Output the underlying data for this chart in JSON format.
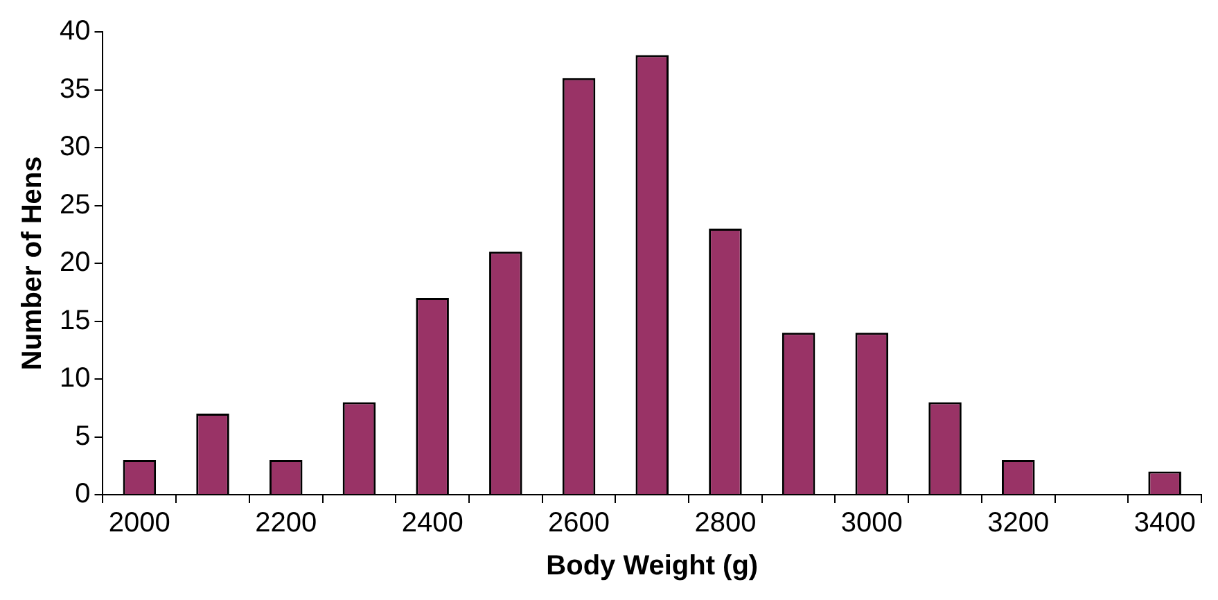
{
  "chart_data": {
    "type": "bar",
    "xlabel": "Body Weight (g)",
    "ylabel": "Number of Hens",
    "categories": [
      "2000",
      null,
      "2200",
      null,
      "2400",
      null,
      "2600",
      null,
      "2800",
      null,
      "3000",
      null,
      "3200",
      null,
      "3400"
    ],
    "values": [
      3,
      7,
      3,
      8,
      17,
      21,
      36,
      38,
      23,
      14,
      14,
      8,
      3,
      0,
      2
    ],
    "color": "#993366",
    "ylim": [
      0,
      40
    ],
    "yticks": [
      0,
      5,
      10,
      15,
      20,
      25,
      30,
      35,
      40
    ]
  }
}
